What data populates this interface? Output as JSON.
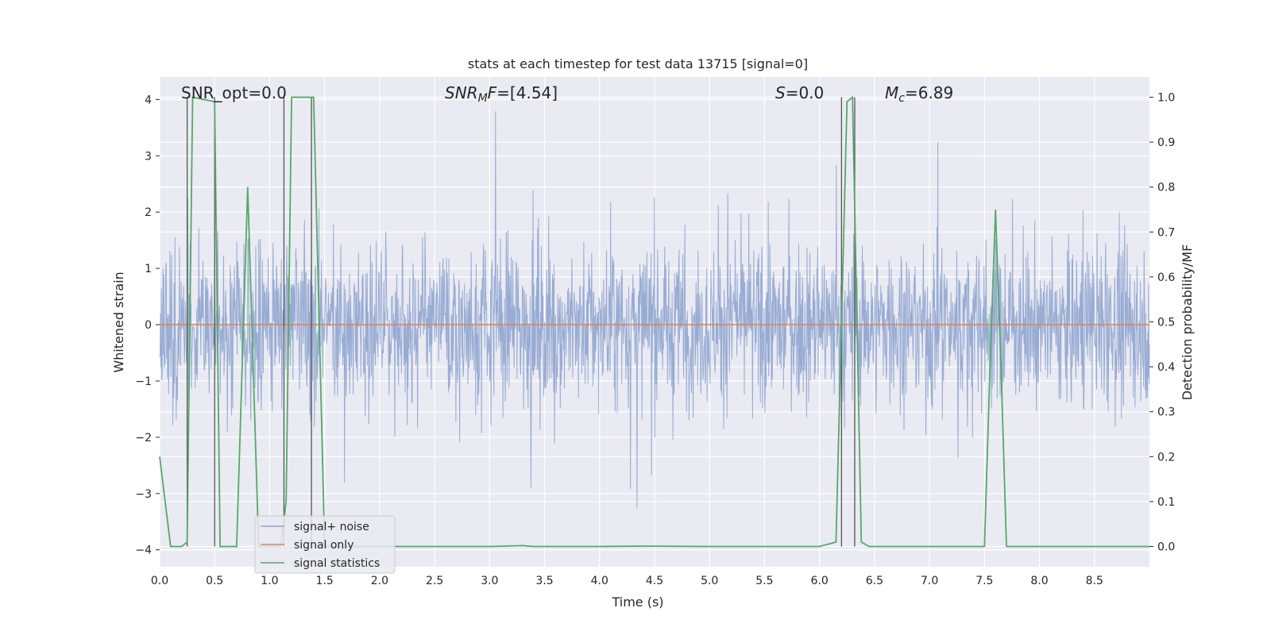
{
  "chart_data": {
    "type": "line",
    "title": "stats at each timestep for test data 13715 [signal=0]",
    "xlabel": "Time (s)",
    "ylabel": "Whitened strain",
    "ylabel_right": "Detection probability/MF",
    "xlim": [
      0.0,
      9.0
    ],
    "ylim": [
      -4.3,
      4.4
    ],
    "ylim_right": [
      -0.045,
      1.045
    ],
    "x_ticks": [
      "0.0",
      "0.5",
      "1.0",
      "1.5",
      "2.0",
      "2.5",
      "3.0",
      "3.5",
      "4.0",
      "4.5",
      "5.0",
      "5.5",
      "6.0",
      "6.5",
      "7.0",
      "7.5",
      "8.0",
      "8.5"
    ],
    "y_ticks": [
      "4",
      "3",
      "2",
      "1",
      "0",
      "−1",
      "−2",
      "−3",
      "−4"
    ],
    "y_ticks_right": [
      "1.0",
      "0.9",
      "0.8",
      "0.7",
      "0.6",
      "0.5",
      "0.4",
      "0.3",
      "0.2",
      "0.1",
      "0.0"
    ],
    "annotations": {
      "snr_opt": "SNR_opt=0.0",
      "snr_mf_main": "SNR",
      "snr_mf_sub": "M",
      "snr_mf_rest": "F",
      "snr_mf_value": "=[4.54]",
      "s_main": "S",
      "s_value": "=0.0",
      "mc_main": "M",
      "mc_sub": "c",
      "mc_value": "=6.89"
    },
    "series": [
      {
        "name": "signal+ noise",
        "color": "#8fa5cf",
        "style": "noise",
        "amplitude_typical": 1.6,
        "amplitude_peak": 3.9
      },
      {
        "name": "signal only",
        "color": "#dd8452",
        "y": 0.0
      },
      {
        "name": "signal statistics",
        "color": "#55a868",
        "axis": "right",
        "x": [
          0.0,
          0.05,
          0.1,
          0.2,
          0.25,
          0.3,
          0.5,
          0.55,
          0.6,
          0.7,
          0.8,
          0.9,
          1.0,
          1.1,
          1.15,
          1.2,
          1.4,
          1.5,
          1.6,
          2.0,
          3.0,
          3.3,
          3.4,
          4.0,
          4.4,
          5.0,
          6.0,
          6.15,
          6.25,
          6.3,
          6.38,
          6.45,
          7.0,
          7.5,
          7.55,
          7.6,
          7.65,
          7.7,
          7.75,
          8.0,
          9.0
        ],
        "y": [
          0.2,
          0.1,
          0.0,
          0.0,
          0.01,
          1.0,
          0.99,
          0.0,
          0.0,
          0.0,
          0.8,
          0.0,
          0.0,
          0.0,
          0.1,
          1.0,
          1.0,
          0.0,
          0.0,
          0.0,
          0.0,
          0.002,
          0.0,
          0.0,
          0.001,
          0.0,
          0.0,
          0.01,
          0.99,
          1.0,
          0.01,
          0.0,
          0.0,
          0.0,
          0.4,
          0.75,
          0.4,
          0.0,
          0.0,
          0.0,
          0.0
        ]
      }
    ],
    "vlines": [
      0.25,
      0.5,
      1.13,
      1.38,
      6.2,
      6.32
    ],
    "legend": {
      "placement": "lower-left",
      "entries": [
        "signal+ noise",
        "signal only",
        "signal statistics"
      ]
    },
    "grid": true
  }
}
